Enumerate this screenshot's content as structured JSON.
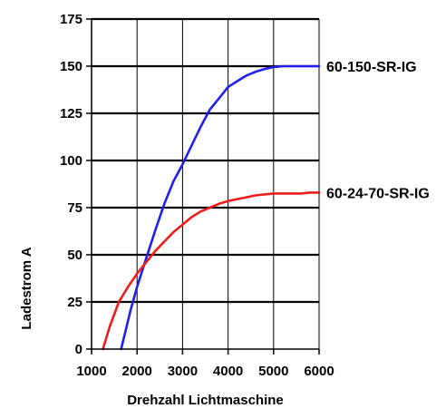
{
  "chart_data": {
    "type": "line",
    "xlabel": "Drehzahl Lichtmaschine",
    "ylabel": "Ladestrom A",
    "xlim": [
      1000,
      6000
    ],
    "ylim": [
      0,
      175
    ],
    "x_ticks": [
      1000,
      2000,
      3000,
      4000,
      5000,
      6000
    ],
    "y_ticks": [
      0,
      25,
      50,
      75,
      100,
      125,
      150,
      175
    ],
    "x_tick_labels": [
      "1000",
      "2000",
      "3000",
      "4000",
      "5000",
      "6000"
    ],
    "y_tick_labels": [
      "0",
      "25",
      "50",
      "75",
      "100",
      "125",
      "150",
      "175"
    ],
    "grid": true,
    "legend": "direct labels at right end of lines",
    "series": [
      {
        "name": "60-150-SR-IG",
        "color": "#2020ee",
        "x": [
          1650,
          1750,
          1850,
          2000,
          2200,
          2400,
          2600,
          2800,
          3000,
          3200,
          3400,
          3600,
          3800,
          4000,
          4200,
          4400,
          4600,
          4800,
          5000,
          5200,
          5400,
          5600,
          5800,
          6000
        ],
        "y": [
          0,
          10,
          20,
          33,
          48,
          63,
          77,
          89,
          98,
          108,
          118,
          127,
          133,
          139,
          142,
          145,
          147,
          148.5,
          149.5,
          150,
          150,
          150,
          150,
          150
        ]
      },
      {
        "name": "60-24-70-SR-IG",
        "color": "#ee1c1c",
        "x": [
          1250,
          1400,
          1600,
          1800,
          2000,
          2200,
          2400,
          2600,
          2800,
          3000,
          3200,
          3400,
          3600,
          3800,
          4000,
          4200,
          4400,
          4600,
          4800,
          5000,
          5200,
          5400,
          5600,
          5800,
          6000
        ],
        "y": [
          0,
          12,
          25,
          33,
          40,
          46,
          52,
          57,
          62,
          66,
          70,
          73,
          75,
          77,
          78.5,
          79.5,
          80.5,
          81.5,
          82,
          82.5,
          82.5,
          82.5,
          82.5,
          83,
          83
        ]
      }
    ]
  }
}
